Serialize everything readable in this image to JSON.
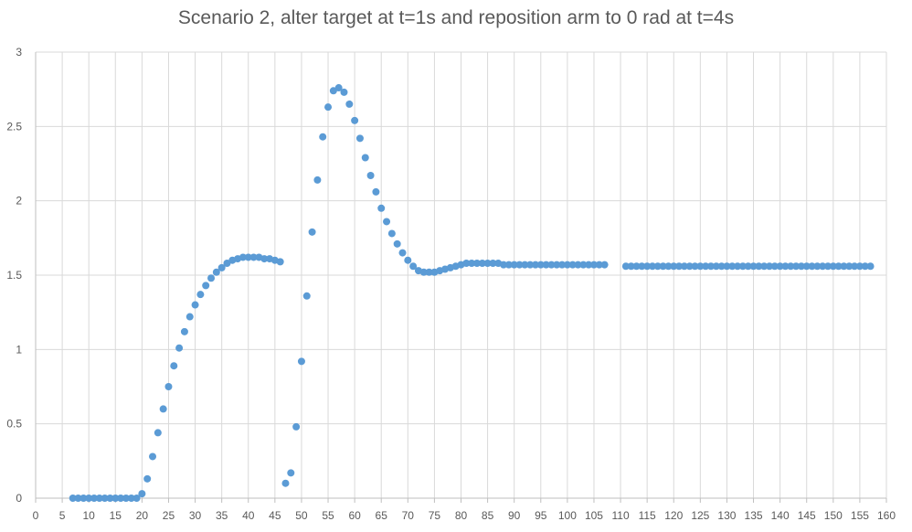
{
  "chart_data": {
    "type": "scatter",
    "title": "Scenario 2, alter target at t=1s and reposition arm to 0 rad at t=4s",
    "xlabel": "",
    "ylabel": "",
    "xlim": [
      0,
      160
    ],
    "ylim": [
      0,
      3
    ],
    "x_ticks": [
      "0",
      "5",
      "10",
      "15",
      "20",
      "25",
      "30",
      "35",
      "40",
      "45",
      "50",
      "55",
      "60",
      "65",
      "70",
      "75",
      "80",
      "85",
      "90",
      "95",
      "100",
      "105",
      "110",
      "115",
      "120",
      "125",
      "130",
      "135",
      "140",
      "145",
      "150",
      "155",
      "160"
    ],
    "y_ticks": [
      "0",
      "0.5",
      "1",
      "1.5",
      "2",
      "2.5",
      "3"
    ],
    "grid": true,
    "legend": "none",
    "marker_color": "#5b9bd5",
    "series": [
      {
        "x": [
          7,
          8,
          9,
          10,
          11,
          12,
          13,
          14,
          15,
          16,
          17,
          18,
          19,
          20,
          21,
          22,
          23,
          24,
          25,
          26,
          27,
          28,
          29,
          30,
          31,
          32,
          33,
          34,
          35,
          36,
          37,
          38,
          39,
          40,
          41,
          42,
          43,
          44,
          45,
          46,
          47,
          48,
          49,
          50,
          51,
          52,
          53,
          54,
          55,
          56,
          57,
          58,
          59,
          60,
          61,
          62,
          63,
          64,
          65,
          66,
          67,
          68,
          69,
          70,
          71,
          72,
          73,
          74,
          75,
          76,
          77,
          78,
          79,
          80,
          81,
          82,
          83,
          84,
          85,
          86,
          87,
          88,
          89,
          90,
          91,
          92,
          93,
          94,
          95,
          96,
          97,
          98,
          99,
          100,
          101,
          102,
          103,
          104,
          105,
          106,
          107,
          111,
          112,
          113,
          114,
          115,
          116,
          117,
          118,
          119,
          120,
          121,
          122,
          123,
          124,
          125,
          126,
          127,
          128,
          129,
          130,
          131,
          132,
          133,
          134,
          135,
          136,
          137,
          138,
          139,
          140,
          141,
          142,
          143,
          144,
          145,
          146,
          147,
          148,
          149,
          150,
          151,
          152,
          153,
          154,
          155,
          156,
          157
        ],
        "y": [
          0,
          0,
          0,
          0,
          0,
          0,
          0,
          0,
          0,
          0,
          0,
          0,
          0,
          0.03,
          0.13,
          0.28,
          0.44,
          0.6,
          0.75,
          0.89,
          1.01,
          1.12,
          1.22,
          1.3,
          1.37,
          1.43,
          1.48,
          1.52,
          1.55,
          1.58,
          1.6,
          1.61,
          1.62,
          1.62,
          1.62,
          1.62,
          1.61,
          1.61,
          1.6,
          1.59,
          0.1,
          0.17,
          0.48,
          0.92,
          1.36,
          1.79,
          2.14,
          2.43,
          2.63,
          2.74,
          2.76,
          2.73,
          2.65,
          2.54,
          2.42,
          2.29,
          2.17,
          2.06,
          1.95,
          1.86,
          1.78,
          1.71,
          1.65,
          1.6,
          1.56,
          1.53,
          1.52,
          1.52,
          1.52,
          1.53,
          1.54,
          1.55,
          1.56,
          1.57,
          1.58,
          1.58,
          1.58,
          1.58,
          1.58,
          1.58,
          1.58,
          1.57,
          1.57,
          1.57,
          1.57,
          1.57,
          1.57,
          1.57,
          1.57,
          1.57,
          1.57,
          1.57,
          1.57,
          1.57,
          1.57,
          1.57,
          1.57,
          1.57,
          1.57,
          1.57,
          1.57,
          1.56,
          1.56,
          1.56,
          1.56,
          1.56,
          1.56,
          1.56,
          1.56,
          1.56,
          1.56,
          1.56,
          1.56,
          1.56,
          1.56,
          1.56,
          1.56,
          1.56,
          1.56,
          1.56,
          1.56,
          1.56,
          1.56,
          1.56,
          1.56,
          1.56,
          1.56,
          1.56,
          1.56,
          1.56,
          1.56,
          1.56,
          1.56,
          1.56,
          1.56,
          1.56,
          1.56,
          1.56,
          1.56,
          1.56,
          1.56,
          1.56,
          1.56,
          1.56,
          1.56,
          1.56,
          1.56,
          1.56
        ]
      }
    ]
  }
}
